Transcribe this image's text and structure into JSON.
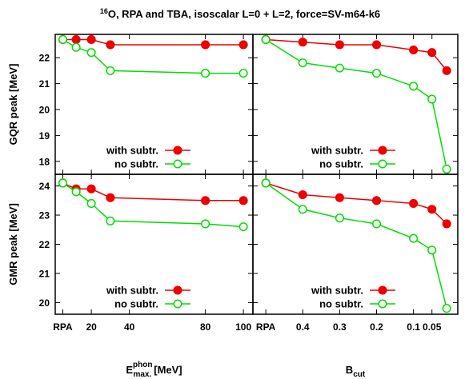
{
  "title": "O,  RPA and TBA, isoscalar L=0 + L=2, force=SV-m64-k6",
  "title_superscript": "16",
  "colors": {
    "with": "#ee0000",
    "without": "#00dd00",
    "axis": "#000000"
  },
  "chart_data": [
    {
      "type": "line",
      "panel": "top-left",
      "ylabel": "GQR peak [MeV]",
      "xlabel": "",
      "ylim": [
        17.5,
        22.9
      ],
      "yticks": [
        18,
        19,
        20,
        21,
        22
      ],
      "xlim": [
        1,
        105
      ],
      "x_tick_values": [
        5,
        20,
        40,
        80,
        100
      ],
      "x_tick_labels": [
        "RPA",
        "20",
        "40",
        "80",
        "100"
      ],
      "legend": "bottom-right",
      "series": [
        {
          "name": "with subtr.",
          "x": [
            5,
            12,
            20,
            30,
            80,
            100
          ],
          "values": [
            22.7,
            22.7,
            22.7,
            22.5,
            22.5,
            22.5
          ]
        },
        {
          "name": "no subtr.",
          "x": [
            5,
            12,
            20,
            30,
            80,
            100
          ],
          "values": [
            22.7,
            22.4,
            22.2,
            21.5,
            21.4,
            21.4
          ]
        }
      ]
    },
    {
      "type": "line",
      "panel": "top-right",
      "ylabel": "",
      "xlabel": "",
      "ylim": [
        17.5,
        22.9
      ],
      "yticks": [
        18,
        19,
        20,
        21,
        22
      ],
      "xlim": [
        0.535,
        -0.02
      ],
      "x_tick_values": [
        0.5,
        0.4,
        0.3,
        0.2,
        0.1,
        0.05
      ],
      "x_tick_labels": [
        "RPA",
        "0.4",
        "0.3",
        "0.2",
        "0.1",
        "0.05"
      ],
      "legend": "bottom-right",
      "series": [
        {
          "name": "with subtr.",
          "x": [
            0.5,
            0.4,
            0.3,
            0.2,
            0.1,
            0.05,
            0.01
          ],
          "values": [
            22.7,
            22.6,
            22.5,
            22.5,
            22.3,
            22.2,
            21.5
          ]
        },
        {
          "name": "no subtr.",
          "x": [
            0.5,
            0.4,
            0.3,
            0.2,
            0.1,
            0.05,
            0.01
          ],
          "values": [
            22.7,
            21.8,
            21.6,
            21.4,
            20.9,
            20.4,
            17.7
          ]
        }
      ]
    },
    {
      "type": "line",
      "panel": "bottom-left",
      "ylabel": "GMR peak [MeV]",
      "xlabel": "[MeV]",
      "xlabel_main": "E",
      "xlabel_sup": "phon",
      "xlabel_sub": "max.",
      "ylim": [
        19.6,
        24.4
      ],
      "yticks": [
        20,
        21,
        22,
        23,
        24
      ],
      "xlim": [
        1,
        105
      ],
      "x_tick_values": [
        5,
        20,
        40,
        80,
        100
      ],
      "x_tick_labels": [
        "RPA",
        "20",
        "40",
        "80",
        "100"
      ],
      "legend": "bottom-right",
      "series": [
        {
          "name": "with subtr.",
          "x": [
            5,
            12,
            20,
            30,
            80,
            100
          ],
          "values": [
            24.1,
            23.9,
            23.9,
            23.6,
            23.5,
            23.5
          ]
        },
        {
          "name": "no subtr.",
          "x": [
            5,
            12,
            20,
            30,
            80,
            100
          ],
          "values": [
            24.1,
            23.8,
            23.4,
            22.8,
            22.7,
            22.6
          ]
        }
      ]
    },
    {
      "type": "line",
      "panel": "bottom-right",
      "ylabel": "",
      "xlabel": "",
      "xlabel_main": "B",
      "xlabel_sub": "cut",
      "ylim": [
        19.6,
        24.4
      ],
      "yticks": [
        20,
        21,
        22,
        23,
        24
      ],
      "xlim": [
        0.535,
        -0.02
      ],
      "x_tick_values": [
        0.5,
        0.4,
        0.3,
        0.2,
        0.1,
        0.05
      ],
      "x_tick_labels": [
        "RPA",
        "0.4",
        "0.3",
        "0.2",
        "0.1",
        "0.05"
      ],
      "legend": "bottom-right",
      "series": [
        {
          "name": "with subtr.",
          "x": [
            0.5,
            0.4,
            0.3,
            0.2,
            0.1,
            0.05,
            0.01
          ],
          "values": [
            24.1,
            23.7,
            23.6,
            23.5,
            23.4,
            23.2,
            22.7
          ]
        },
        {
          "name": "no subtr.",
          "x": [
            0.5,
            0.4,
            0.3,
            0.2,
            0.1,
            0.05,
            0.01
          ],
          "values": [
            24.1,
            23.2,
            22.9,
            22.7,
            22.2,
            21.8,
            19.8
          ]
        }
      ]
    }
  ]
}
